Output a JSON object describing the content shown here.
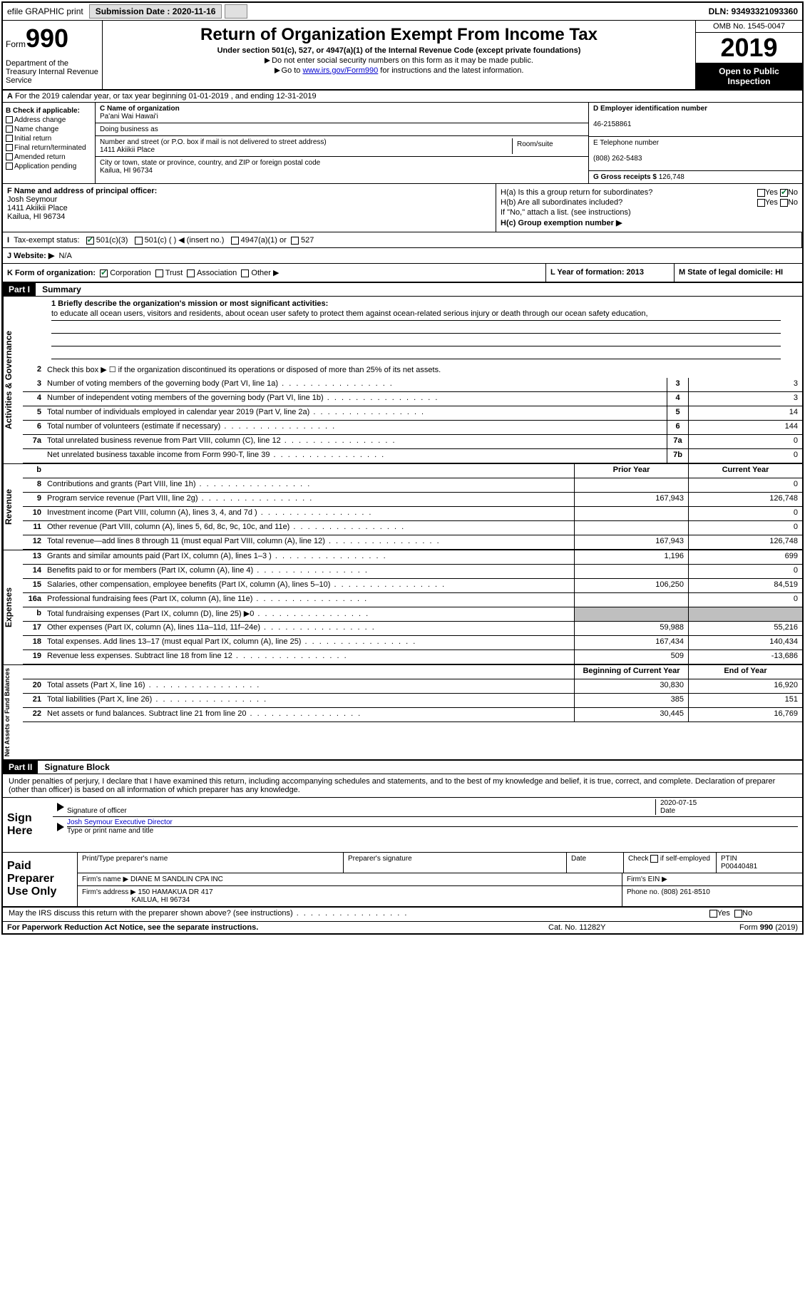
{
  "topbar": {
    "efile": "efile GRAPHIC print",
    "submission_label": "Submission Date : 2020-11-16",
    "dln": "DLN: 93493321093360"
  },
  "header": {
    "form_label": "Form",
    "form_number": "990",
    "dept": "Department of the Treasury Internal Revenue Service",
    "title": "Return of Organization Exempt From Income Tax",
    "subtitle": "Under section 501(c), 527, or 4947(a)(1) of the Internal Revenue Code (except private foundations)",
    "note1": "Do not enter social security numbers on this form as it may be made public.",
    "note2_pre": "Go to ",
    "note2_link": "www.irs.gov/Form990",
    "note2_post": " for instructions and the latest information.",
    "omb": "OMB No. 1545-0047",
    "year": "2019",
    "inspect": "Open to Public Inspection"
  },
  "row_a": "For the 2019 calendar year, or tax year beginning 01-01-2019    , and ending 12-31-2019",
  "box_b": {
    "title": "B Check if applicable:",
    "opts": [
      "Address change",
      "Name change",
      "Initial return",
      "Final return/terminated",
      "Amended return",
      "Application pending"
    ]
  },
  "box_c": {
    "name_label": "C Name of organization",
    "name": "Pa'ani Wai Hawai'i",
    "dba_label": "Doing business as",
    "dba": "",
    "addr_label": "Number and street (or P.O. box if mail is not delivered to street address)",
    "room_label": "Room/suite",
    "addr": "1411 Akiikii Place",
    "city_label": "City or town, state or province, country, and ZIP or foreign postal code",
    "city": "Kailua, HI  96734"
  },
  "box_d": {
    "label": "D Employer identification number",
    "val": "46-2158861"
  },
  "box_e": {
    "label": "E Telephone number",
    "val": "(808) 262-5483"
  },
  "box_g": {
    "label": "G Gross receipts $",
    "val": "126,748"
  },
  "box_f": {
    "label": "F Name and address of principal officer:",
    "name": "Josh Seymour",
    "addr1": "1411 Akiikii Place",
    "addr2": "Kailua, HI  96734"
  },
  "box_h": {
    "ha": "H(a)  Is this a group return for subordinates?",
    "hb": "H(b)  Are all subordinates included?",
    "hb_note": "If \"No,\" attach a list. (see instructions)",
    "hc": "H(c)  Group exemption number ▶",
    "yes": "Yes",
    "no": "No"
  },
  "row_i": {
    "label": "Tax-exempt status:",
    "o1": "501(c)(3)",
    "o2": "501(c) (  ) ◀ (insert no.)",
    "o3": "4947(a)(1) or",
    "o4": "527"
  },
  "row_j": {
    "label": "J   Website: ▶",
    "val": "N/A"
  },
  "row_k": {
    "label": "K Form of organization:",
    "o1": "Corporation",
    "o2": "Trust",
    "o3": "Association",
    "o4": "Other ▶",
    "l": "L Year of formation: 2013",
    "m": "M State of legal domicile: HI"
  },
  "part1": {
    "hdr": "Part I",
    "title": "Summary"
  },
  "mission": {
    "label": "1   Briefly describe the organization's mission or most significant activities:",
    "text": "to educate all ocean users, visitors and residents, about ocean user safety to protect them against ocean-related serious injury or death through our ocean safety education,"
  },
  "line2": "Check this box ▶ ☐  if the organization discontinued its operations or disposed of more than 25% of its net assets.",
  "gov_lines": [
    {
      "n": "3",
      "d": "Number of voting members of the governing body (Part VI, line 1a)",
      "b": "3",
      "v": "3"
    },
    {
      "n": "4",
      "d": "Number of independent voting members of the governing body (Part VI, line 1b)",
      "b": "4",
      "v": "3"
    },
    {
      "n": "5",
      "d": "Total number of individuals employed in calendar year 2019 (Part V, line 2a)",
      "b": "5",
      "v": "14"
    },
    {
      "n": "6",
      "d": "Total number of volunteers (estimate if necessary)",
      "b": "6",
      "v": "144"
    },
    {
      "n": "7a",
      "d": "Total unrelated business revenue from Part VIII, column (C), line 12",
      "b": "7a",
      "v": "0"
    },
    {
      "n": "",
      "d": "Net unrelated business taxable income from Form 990-T, line 39",
      "b": "7b",
      "v": "0"
    }
  ],
  "col_hdr": {
    "prior": "Prior Year",
    "current": "Current Year",
    "beg": "Beginning of Current Year",
    "end": "End of Year"
  },
  "rev_lines": [
    {
      "n": "8",
      "d": "Contributions and grants (Part VIII, line 1h)",
      "p": "",
      "c": "0"
    },
    {
      "n": "9",
      "d": "Program service revenue (Part VIII, line 2g)",
      "p": "167,943",
      "c": "126,748"
    },
    {
      "n": "10",
      "d": "Investment income (Part VIII, column (A), lines 3, 4, and 7d )",
      "p": "",
      "c": "0"
    },
    {
      "n": "11",
      "d": "Other revenue (Part VIII, column (A), lines 5, 6d, 8c, 9c, 10c, and 11e)",
      "p": "",
      "c": "0"
    },
    {
      "n": "12",
      "d": "Total revenue—add lines 8 through 11 (must equal Part VIII, column (A), line 12)",
      "p": "167,943",
      "c": "126,748"
    }
  ],
  "exp_lines": [
    {
      "n": "13",
      "d": "Grants and similar amounts paid (Part IX, column (A), lines 1–3 )",
      "p": "1,196",
      "c": "699"
    },
    {
      "n": "14",
      "d": "Benefits paid to or for members (Part IX, column (A), line 4)",
      "p": "",
      "c": "0"
    },
    {
      "n": "15",
      "d": "Salaries, other compensation, employee benefits (Part IX, column (A), lines 5–10)",
      "p": "106,250",
      "c": "84,519"
    },
    {
      "n": "16a",
      "d": "Professional fundraising fees (Part IX, column (A), line 11e)",
      "p": "",
      "c": "0"
    },
    {
      "n": "b",
      "d": "Total fundraising expenses (Part IX, column (D), line 25) ▶0",
      "p": "shade",
      "c": "shade"
    },
    {
      "n": "17",
      "d": "Other expenses (Part IX, column (A), lines 11a–11d, 11f–24e)",
      "p": "59,988",
      "c": "55,216"
    },
    {
      "n": "18",
      "d": "Total expenses. Add lines 13–17 (must equal Part IX, column (A), line 25)",
      "p": "167,434",
      "c": "140,434"
    },
    {
      "n": "19",
      "d": "Revenue less expenses. Subtract line 18 from line 12",
      "p": "509",
      "c": "-13,686"
    }
  ],
  "net_lines": [
    {
      "n": "20",
      "d": "Total assets (Part X, line 16)",
      "p": "30,830",
      "c": "16,920"
    },
    {
      "n": "21",
      "d": "Total liabilities (Part X, line 26)",
      "p": "385",
      "c": "151"
    },
    {
      "n": "22",
      "d": "Net assets or fund balances. Subtract line 21 from line 20",
      "p": "30,445",
      "c": "16,769"
    }
  ],
  "side_labels": {
    "gov": "Activities & Governance",
    "rev": "Revenue",
    "exp": "Expenses",
    "net": "Net Assets or Fund Balances"
  },
  "part2": {
    "hdr": "Part II",
    "title": "Signature Block"
  },
  "sig_decl": "Under penalties of perjury, I declare that I have examined this return, including accompanying schedules and statements, and to the best of my knowledge and belief, it is true, correct, and complete. Declaration of preparer (other than officer) is based on all information of which preparer has any knowledge.",
  "sign": {
    "here": "Sign Here",
    "off_label": "Signature of officer",
    "date_label": "Date",
    "date": "2020-07-15",
    "name": "Josh Seymour Executive Director",
    "name_label": "Type or print name and title"
  },
  "prep": {
    "title": "Paid Preparer Use Only",
    "h1": "Print/Type preparer's name",
    "h2": "Preparer's signature",
    "h3": "Date",
    "h4_pre": "Check",
    "h4_post": "if self-employed",
    "h5": "PTIN",
    "ptin": "P00440481",
    "firm_label": "Firm's name    ▶",
    "firm": "DIANE M SANDLIN CPA INC",
    "ein_label": "Firm's EIN ▶",
    "addr_label": "Firm's address ▶",
    "addr1": "150 HAMAKUA DR 417",
    "addr2": "KAILUA, HI  96734",
    "phone_label": "Phone no.",
    "phone": "(808) 261-8510"
  },
  "discuss": "May the IRS discuss this return with the preparer shown above? (see instructions)",
  "footer": {
    "left": "For Paperwork Reduction Act Notice, see the separate instructions.",
    "mid": "Cat. No. 11282Y",
    "right_pre": "Form ",
    "right_b": "990",
    "right_post": " (2019)"
  }
}
